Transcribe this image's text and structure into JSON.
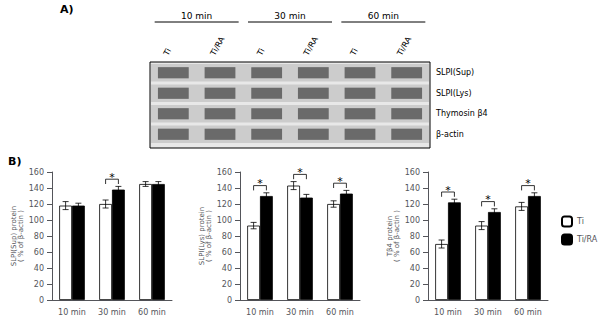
{
  "chart_data": [
    {
      "type": "blot",
      "title": "A)",
      "categories": [
        "Ti",
        "Ti/RA",
        "Ti",
        "Ti/RA",
        "Ti",
        "Ti/RA"
      ],
      "annotations": [
        "10 min",
        "30 min",
        "60 min"
      ],
      "series": [
        {
          "name": "SLPI(Sup)"
        },
        {
          "name": "SLPI(Lys)"
        },
        {
          "name": "Thymosin β4"
        },
        {
          "name": "β-actin"
        }
      ]
    },
    {
      "type": "bar",
      "title": "B)",
      "categories": [
        "10 min",
        "30 min",
        "60 min"
      ],
      "ylabel": "SLPI(Sup) protein\n( % of β-actin )",
      "series": [
        {
          "name": "Ti",
          "color": "white",
          "values": [
            118,
            120,
            145
          ],
          "errors": [
            5,
            5,
            3
          ]
        },
        {
          "name": "Ti/RA",
          "color": "black",
          "values": [
            118,
            138,
            145
          ],
          "errors": [
            3,
            4,
            3
          ]
        }
      ],
      "significant": [
        false,
        true,
        false
      ],
      "annotation": "*",
      "ylim": [
        0,
        160
      ],
      "yticks": [
        0,
        20,
        40,
        60,
        80,
        100,
        120,
        140,
        160
      ],
      "grid": false
    },
    {
      "type": "bar",
      "categories": [
        "10 min",
        "30 min",
        "60 min"
      ],
      "ylabel": "SLPI(Lys) protein\n( % of β-actin )",
      "series": [
        {
          "name": "Ti",
          "color": "white",
          "values": [
            93,
            143,
            120
          ],
          "errors": [
            4,
            5,
            4
          ]
        },
        {
          "name": "Ti/RA",
          "color": "black",
          "values": [
            130,
            128,
            133
          ],
          "errors": [
            4,
            4,
            4
          ]
        }
      ],
      "significant": [
        true,
        true,
        true
      ],
      "annotation": "*",
      "ylim": [
        0,
        160
      ],
      "yticks": [
        0,
        20,
        40,
        60,
        80,
        100,
        120,
        140,
        160
      ],
      "grid": false
    },
    {
      "type": "bar",
      "categories": [
        "10 min",
        "30 min",
        "60 min"
      ],
      "ylabel": "Tβ4 protein\n( % of β-actin )",
      "series": [
        {
          "name": "Ti",
          "color": "white",
          "values": [
            70,
            93,
            117
          ],
          "errors": [
            5,
            5,
            5
          ]
        },
        {
          "name": "Ti/RA",
          "color": "black",
          "values": [
            122,
            110,
            130
          ],
          "errors": [
            4,
            4,
            4
          ]
        }
      ],
      "significant": [
        true,
        true,
        true
      ],
      "annotation": "*",
      "ylim": [
        0,
        160
      ],
      "yticks": [
        0,
        20,
        40,
        60,
        80,
        100,
        120,
        140,
        160
      ],
      "grid": false,
      "legend": "right"
    }
  ]
}
